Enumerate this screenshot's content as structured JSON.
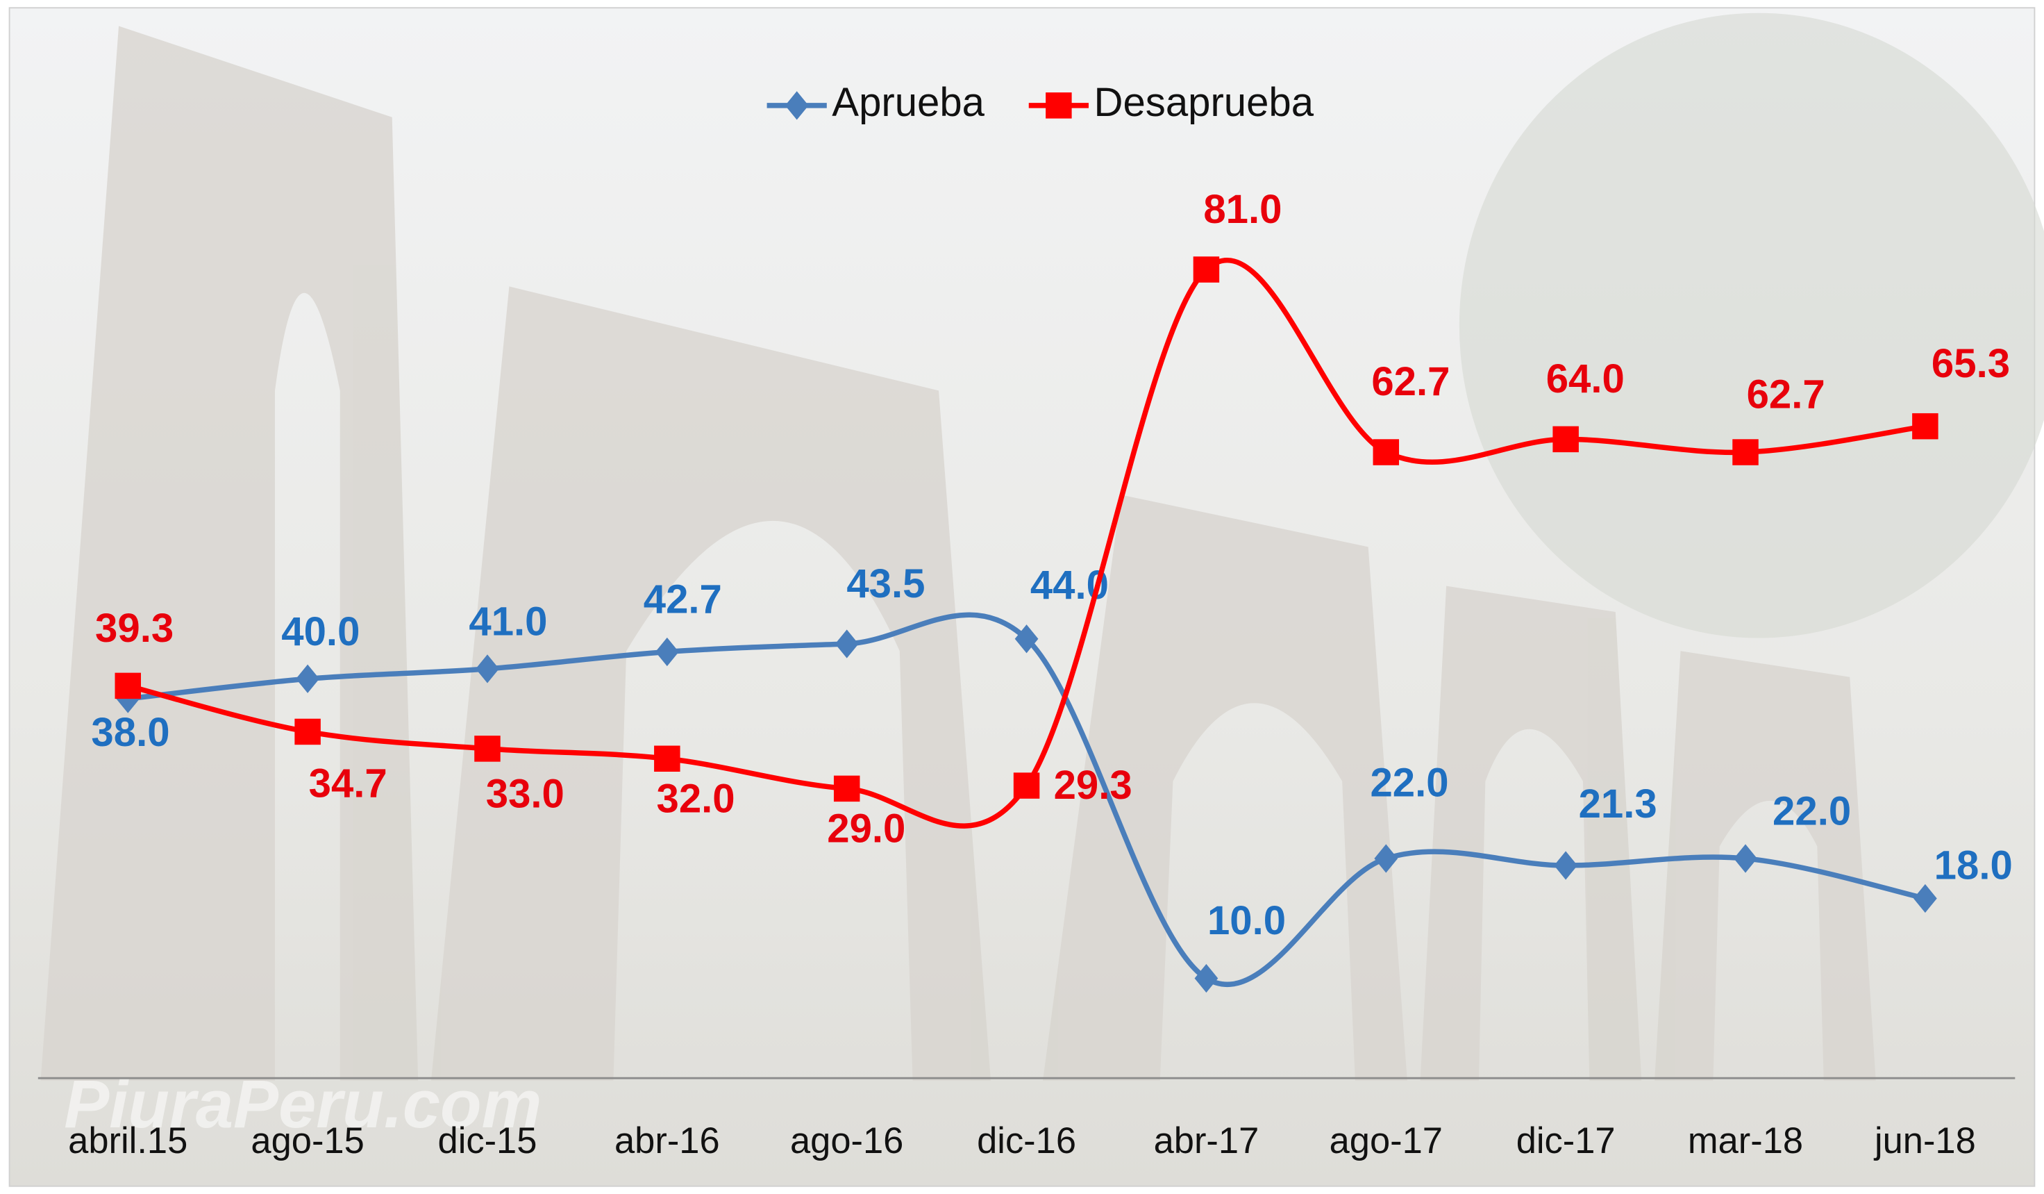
{
  "chart_data": {
    "type": "line",
    "categories": [
      "abril.15",
      "ago-15",
      "dic-15",
      "abr-16",
      "ago-16",
      "dic-16",
      "abr-17",
      "ago-17",
      "dic-17",
      "mar-18",
      "jun-18"
    ],
    "series": [
      {
        "name": "Aprueba",
        "color": "#4a7ebb",
        "label_color": "#1f6fc0",
        "marker": "diamond",
        "values": [
          38.0,
          40.0,
          41.0,
          42.7,
          43.5,
          44.0,
          10.0,
          22.0,
          21.3,
          22.0,
          18.0
        ],
        "value_labels": [
          "38.0",
          "40.0",
          "41.0",
          "42.7",
          "43.5",
          "44.0",
          "10.0",
          "22.0",
          "21.3",
          "22.0",
          "18.0"
        ]
      },
      {
        "name": "Desaprueba",
        "color": "#ff0000",
        "label_color": "#e8000b",
        "marker": "square",
        "values": [
          39.3,
          34.7,
          33.0,
          32.0,
          29.0,
          29.3,
          81.0,
          62.7,
          64.0,
          62.7,
          65.3
        ],
        "value_labels": [
          "39.3",
          "34.7",
          "33.0",
          "32.0",
          "29.0",
          "29.3",
          "81.0",
          "62.7",
          "64.0",
          "62.7",
          "65.3"
        ]
      }
    ],
    "ylim": [
      0,
      105
    ],
    "smooth": true,
    "legend": "top",
    "watermark": "PiuraPeru.com"
  }
}
